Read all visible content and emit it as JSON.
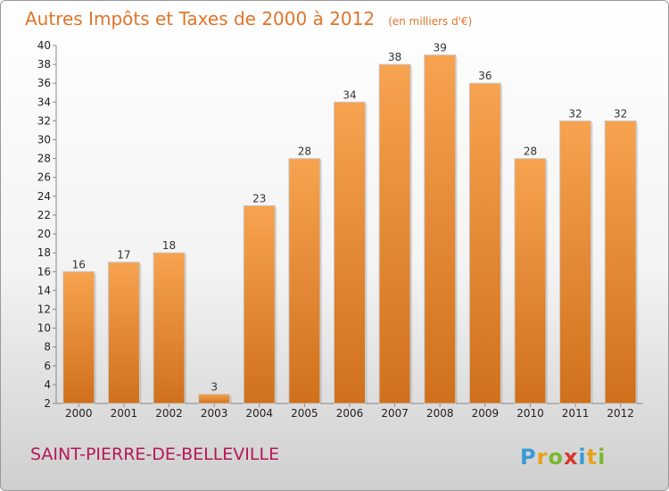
{
  "chart_data": {
    "type": "bar",
    "title": "Autres Impôts et Taxes de 2000 à 2012",
    "subtitle": "(en milliers d'€)",
    "xlabel": "",
    "ylabel": "",
    "categories": [
      "2000",
      "2001",
      "2002",
      "2003",
      "2004",
      "2005",
      "2006",
      "2007",
      "2008",
      "2009",
      "2010",
      "2011",
      "2012"
    ],
    "values": [
      16,
      17,
      18,
      3,
      23,
      28,
      34,
      38,
      39,
      36,
      28,
      32,
      32
    ],
    "ylim": [
      2,
      40
    ],
    "yticks": [
      2,
      4,
      6,
      8,
      10,
      12,
      14,
      16,
      18,
      20,
      22,
      24,
      26,
      28,
      30,
      32,
      34,
      36,
      38,
      40
    ],
    "grid": false,
    "colors": {
      "bar_top": "#f7a34f",
      "bar_bottom": "#d0701c",
      "title": "#e0752a",
      "commune": "#b5175a"
    }
  },
  "footer": {
    "commune": "SAINT-PIERRE-DE-BELLEVILLE",
    "logo": "Proxiti"
  }
}
